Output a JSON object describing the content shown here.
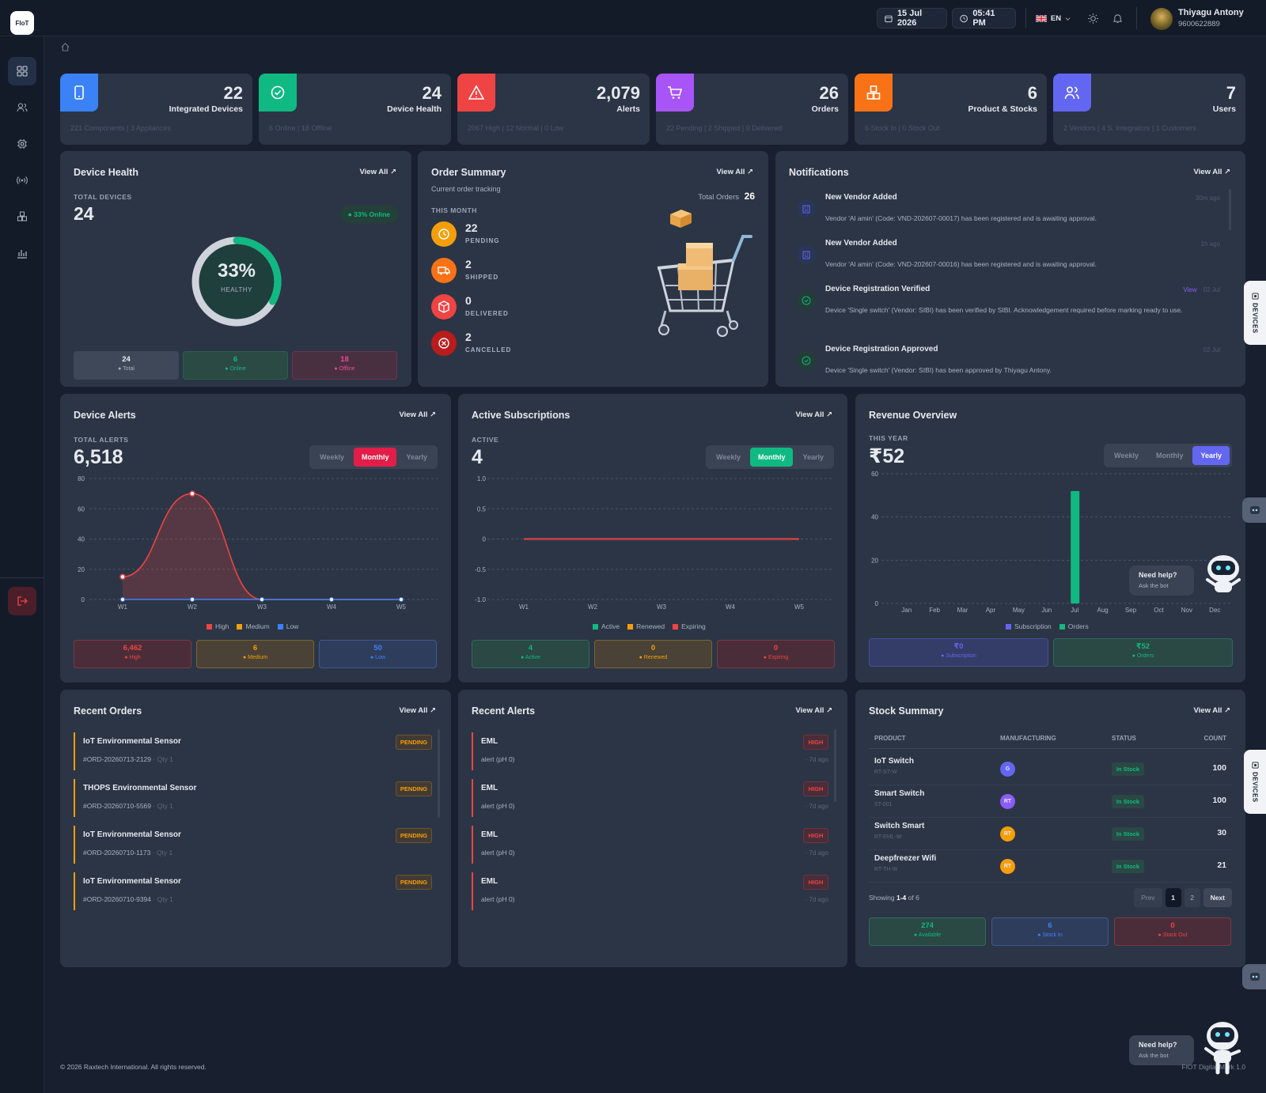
{
  "brand": {
    "logo": "FIoT"
  },
  "topbar": {
    "date": "15 Jul 2026",
    "time": "05:41 PM",
    "lang": "EN",
    "user_name": "Thiyagu Antony",
    "user_phone": "9600622889"
  },
  "stats": [
    {
      "value": "22",
      "label": "Integrated Devices",
      "sub": "221 Components | 3 Appliances",
      "color": "#3b82f6"
    },
    {
      "value": "24",
      "label": "Device Health",
      "sub": "6 Online | 18 Offline",
      "color": "#10b981"
    },
    {
      "value": "2,079",
      "label": "Alerts",
      "sub": "2067 High | 12 Normal | 0 Low",
      "color": "#ef4444"
    },
    {
      "value": "26",
      "label": "Orders",
      "sub": "22 Pending | 2 Shipped | 0 Delivered",
      "color": "#a855f7"
    },
    {
      "value": "6",
      "label": "Product & Stocks",
      "sub": "6 Stock In | 0 Stock Out",
      "color": "#f97316"
    },
    {
      "value": "7",
      "label": "Users",
      "sub": "2 Vendors | 4 S. Integrators | 1 Customers",
      "color": "#6366f1"
    }
  ],
  "device_health": {
    "title": "Device Health",
    "view_all": "View All",
    "total_label": "TOTAL DEVICES",
    "total": "24",
    "online_badge": "33% Online",
    "percent": "33%",
    "percent_value": 33,
    "ring_label": "HEALTHY",
    "boxes": [
      {
        "value": "24",
        "label": "Total"
      },
      {
        "value": "6",
        "label": "Online"
      },
      {
        "value": "18",
        "label": "Offline"
      }
    ]
  },
  "order_summary": {
    "title": "Order Summary",
    "subtitle": "Current order tracking",
    "view_all": "View All",
    "total_label": "Total Orders",
    "total": "26",
    "period": "THIS MONTH",
    "items": [
      {
        "value": "22",
        "label": "PENDING"
      },
      {
        "value": "2",
        "label": "SHIPPED"
      },
      {
        "value": "0",
        "label": "DELIVERED"
      },
      {
        "value": "2",
        "label": "CANCELLED"
      }
    ]
  },
  "notifications": {
    "title": "Notifications",
    "view_all": "View All",
    "items": [
      {
        "title": "New Vendor Added",
        "desc": "Vendor 'Al amin' (Code: VND-202607-00017) has been registered and is awaiting approval.",
        "meta": "30m ago",
        "link": ""
      },
      {
        "title": "New Vendor Added",
        "desc": "Vendor 'Al amin' (Code: VND-202607-00016) has been registered and is awaiting approval.",
        "meta": "1h ago",
        "link": ""
      },
      {
        "title": "Device Registration Verified",
        "desc": "Device 'Single switch' (Vendor: SIBI) has been verified by SIBI. Acknowledgement required before marking ready to use.",
        "meta": "02 Jul",
        "link": "View"
      },
      {
        "title": "Device Registration Approved",
        "desc": "Device 'Single switch' (Vendor: SIBI) has been approved by Thiyagu Antony.",
        "meta": "02 Jul",
        "link": ""
      }
    ]
  },
  "device_alerts": {
    "title": "Device Alerts",
    "view_all": "View All",
    "total_label": "TOTAL ALERTS",
    "total": "6,518",
    "tabs": [
      "Weekly",
      "Monthly",
      "Yearly"
    ],
    "active_tab": "Monthly",
    "legend": [
      "High",
      "Medium",
      "Low"
    ],
    "boxes": [
      {
        "value": "6,462",
        "label": "High"
      },
      {
        "value": "6",
        "label": "Medium"
      },
      {
        "value": "50",
        "label": "Low"
      }
    ]
  },
  "subscriptions": {
    "title": "Active Subscriptions",
    "view_all": "View All",
    "total_label": "ACTIVE",
    "total": "4",
    "tabs": [
      "Weekly",
      "Monthly",
      "Yearly"
    ],
    "active_tab": "Monthly",
    "legend": [
      "Active",
      "Renewed",
      "Expiring"
    ],
    "boxes": [
      {
        "value": "4",
        "label": "Active"
      },
      {
        "value": "0",
        "label": "Renewed"
      },
      {
        "value": "0",
        "label": "Expiring"
      }
    ]
  },
  "revenue": {
    "title": "Revenue Overview",
    "total_label": "THIS YEAR",
    "total": "₹52",
    "tabs": [
      "Weekly",
      "Monthly",
      "Yearly"
    ],
    "active_tab": "Yearly",
    "legend": [
      "Subscription",
      "Orders"
    ],
    "boxes": [
      {
        "value": "₹0",
        "label": "Subscription"
      },
      {
        "value": "₹52",
        "label": "Orders"
      }
    ]
  },
  "chart_data": [
    {
      "type": "line",
      "title": "Device Alerts",
      "categories": [
        "W1",
        "W2",
        "W3",
        "W4",
        "W5"
      ],
      "ylim": [
        0,
        80
      ],
      "yticks": [
        0,
        20,
        40,
        60,
        80
      ],
      "series": [
        {
          "name": "High",
          "values": [
            15,
            70,
            0,
            0,
            0
          ],
          "color": "#ef4444"
        },
        {
          "name": "Medium",
          "values": [
            0,
            0,
            0,
            0,
            0
          ],
          "color": "#f59e0b"
        },
        {
          "name": "Low",
          "values": [
            0,
            0,
            0,
            0,
            0
          ],
          "color": "#3b82f6"
        }
      ]
    },
    {
      "type": "line",
      "title": "Active Subscriptions",
      "categories": [
        "W1",
        "W2",
        "W3",
        "W4",
        "W5"
      ],
      "ylim": [
        -1,
        1
      ],
      "yticks": [
        "1.0",
        "0.5",
        "0",
        "-0.5",
        "-1.0"
      ],
      "series": [
        {
          "name": "Active",
          "values": [
            0,
            0,
            0,
            0,
            0
          ],
          "color": "#ef4444"
        }
      ]
    },
    {
      "type": "bar",
      "title": "Revenue Overview",
      "categories": [
        "Jan",
        "Feb",
        "Mar",
        "Apr",
        "May",
        "Jun",
        "Jul",
        "Aug",
        "Sep",
        "Oct",
        "Nov",
        "Dec"
      ],
      "ylim": [
        0,
        60
      ],
      "yticks": [
        0,
        20,
        40,
        60
      ],
      "series": [
        {
          "name": "Subscription",
          "values": [
            0,
            0,
            0,
            0,
            0,
            0,
            0,
            0,
            0,
            0,
            0,
            0
          ],
          "color": "#6366f1"
        },
        {
          "name": "Orders",
          "values": [
            0,
            0,
            0,
            0,
            0,
            0,
            52,
            0,
            0,
            0,
            0,
            0
          ],
          "color": "#10b981"
        }
      ]
    }
  ],
  "recent_orders": {
    "title": "Recent Orders",
    "view_all": "View All",
    "items": [
      {
        "name": "IoT Environmental Sensor",
        "code": "#ORD-20260713-2129",
        "qty": "Qty 1",
        "status": "PENDING"
      },
      {
        "name": "THOPS Environmental Sensor",
        "code": "#ORD-20260710-5569",
        "qty": "Qty 1",
        "status": "PENDING"
      },
      {
        "name": "IoT Environmental Sensor",
        "code": "#ORD-20260710-1173",
        "qty": "Qty 1",
        "status": "PENDING"
      },
      {
        "name": "IoT Environmental Sensor",
        "code": "#ORD-20260710-9394",
        "qty": "Qty 1",
        "status": "PENDING"
      }
    ]
  },
  "recent_alerts": {
    "title": "Recent Alerts",
    "view_all": "View All",
    "items": [
      {
        "name": "EML",
        "desc": "alert (pH 0)",
        "level": "HIGH",
        "time": "7d ago"
      },
      {
        "name": "EML",
        "desc": "alert (pH 0)",
        "level": "HIGH",
        "time": "7d ago"
      },
      {
        "name": "EML",
        "desc": "alert (pH 0)",
        "level": "HIGH",
        "time": "7d ago"
      },
      {
        "name": "EML",
        "desc": "alert (pH 0)",
        "level": "HIGH",
        "time": "7d ago"
      }
    ]
  },
  "stock": {
    "title": "Stock Summary",
    "view_all": "View All",
    "headers": [
      "PRODUCT",
      "MANUFACTURING",
      "STATUS",
      "COUNT"
    ],
    "rows": [
      {
        "product": "IoT Switch",
        "sku": "RT-ST-W",
        "mfr": "G",
        "mfr_color": "#6366f1",
        "status": "In Stock",
        "count": "100"
      },
      {
        "product": "Smart Switch",
        "sku": "ST-001",
        "mfr": "RT",
        "mfr_color": "#8b5cf6",
        "status": "In Stock",
        "count": "100"
      },
      {
        "product": "Switch Smart",
        "sku": "RT-EML-W",
        "mfr": "RT",
        "mfr_color": "#f59e0b",
        "status": "In Stock",
        "count": "30"
      },
      {
        "product": "Deepfreezer Wifi",
        "sku": "RT-TH-W",
        "mfr": "RT",
        "mfr_color": "#f59e0b",
        "status": "In Stock",
        "count": "21"
      }
    ],
    "showing_pre": "Showing",
    "showing_range": "1-4",
    "showing_post": "of 6",
    "prev": "Prev",
    "pages": [
      "1",
      "2"
    ],
    "next": "Next",
    "boxes": [
      {
        "value": "274",
        "label": "Available"
      },
      {
        "value": "6",
        "label": "Stock In"
      },
      {
        "value": "0",
        "label": "Stock Out"
      }
    ]
  },
  "side_tabs": {
    "devices": "DEVICES"
  },
  "help": {
    "title": "Need help?",
    "sub": "Ask the bot"
  },
  "footer": {
    "copyright": "© 2026 Raxtech International. All rights reserved.",
    "version": "FIOT Digital Mark 1.0"
  }
}
